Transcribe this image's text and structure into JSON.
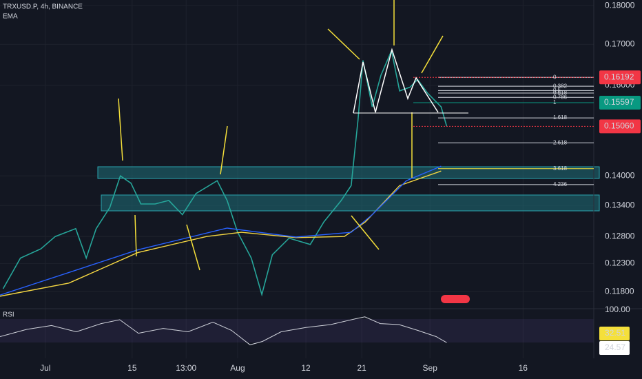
{
  "symbol": "TRXUSD.P, 4h, BINANCE",
  "indicator": "EMA",
  "rsi_label": "RSI",
  "chart_data": {
    "type": "line",
    "log": true,
    "grid": true,
    "xlim": [
      -7.3,
      88.4
    ],
    "ylim": [
      0.116,
      0.1815
    ],
    "xticks": [
      {
        "value": 0,
        "label": "Jul"
      },
      {
        "value": 14,
        "label": "15"
      },
      {
        "value": 22.7,
        "label": "13:00"
      },
      {
        "value": 31,
        "label": "Aug"
      },
      {
        "value": 42,
        "label": "12"
      },
      {
        "value": 51,
        "label": "21"
      },
      {
        "value": 62,
        "label": "Sep"
      },
      {
        "value": 77,
        "label": "16"
      }
    ],
    "yticks": [
      {
        "value": 0.18,
        "label": "0.18000"
      },
      {
        "value": 0.17,
        "label": "0.17000"
      },
      {
        "value": 0.16,
        "label": "0.16000"
      },
      {
        "value": 0.14,
        "label": "0.14000"
      },
      {
        "value": 0.134,
        "label": "0.13400"
      },
      {
        "value": 0.128,
        "label": "0.12800"
      },
      {
        "value": 0.123,
        "label": "0.12300"
      },
      {
        "value": 0.118,
        "label": "0.11800"
      }
    ],
    "series": [
      {
        "color": "#26a69a",
        "x": [
          -6.8,
          -4,
          -0.7,
          1.6,
          4.9,
          6.6,
          8.2,
          10.4,
          12.1,
          13.8,
          15.4,
          17.7,
          19.9,
          22.1,
          24.3,
          27.7,
          29.3,
          31,
          33.2,
          34.9,
          36.6,
          39.3,
          42.7,
          44.9,
          47.7,
          49.3,
          50.4,
          51.2,
          52.7,
          54.1,
          55.8,
          57.1,
          58.8,
          60,
          61.6,
          63.8,
          64.7
        ],
        "values": [
          0.1185,
          0.124,
          0.1257,
          0.128,
          0.1295,
          0.124,
          0.1295,
          0.1336,
          0.14,
          0.1385,
          0.1343,
          0.1343,
          0.135,
          0.1322,
          0.1364,
          0.139,
          0.135,
          0.1288,
          0.124,
          0.1175,
          0.1246,
          0.1277,
          0.1265,
          0.1308,
          0.135,
          0.138,
          0.152,
          0.166,
          0.155,
          0.1624,
          0.1684,
          0.1587,
          0.1596,
          0.1614,
          0.1582,
          0.155,
          0.1506
        ]
      },
      {
        "color": "#f5d742",
        "x": [
          -7.3,
          3.8,
          14.9,
          26,
          31.6,
          40.4,
          48.2,
          51.6,
          57.1,
          63.8
        ],
        "values": [
          0.1172,
          0.1195,
          0.125,
          0.128,
          0.1288,
          0.1278,
          0.128,
          0.1308,
          0.138,
          0.141
        ]
      },
      {
        "color": "#2962ff",
        "x": [
          -7.3,
          14.9,
          29.3,
          40.4,
          49.3,
          52.7,
          58.2,
          63.8
        ],
        "values": [
          0.1174,
          0.1255,
          0.1296,
          0.1279,
          0.1288,
          0.1322,
          0.139,
          0.142
        ]
      }
    ],
    "price_labels": [
      {
        "value": 0.16192,
        "label": "0.16192",
        "color": "#f23645"
      },
      {
        "value": 0.15597,
        "label": "0.15597",
        "color": "#089981"
      },
      {
        "value": 0.1506,
        "label": "0.15060",
        "color": "#f23645"
      }
    ],
    "fib_levels": [
      {
        "label": "0",
        "price": 0.16192
      },
      {
        "label": "0.382",
        "price": 0.1598
      },
      {
        "label": "0.5",
        "price": 0.1588
      },
      {
        "label": "0.618",
        "price": 0.1582
      },
      {
        "label": "0.786",
        "price": 0.1572
      },
      {
        "label": "1",
        "price": 0.15597
      },
      {
        "label": "1.618",
        "price": 0.1525
      },
      {
        "label": "2.618",
        "price": 0.147
      },
      {
        "label": "3.618",
        "price": 0.1415
      },
      {
        "label": "4.236",
        "price": 0.1382
      }
    ],
    "rsi": {
      "ylim": [
        0,
        100
      ],
      "yticks": [
        {
          "value": 100,
          "label": "100.00"
        }
      ],
      "x": [
        -7.3,
        -3,
        1,
        5,
        9,
        12,
        15,
        19,
        23,
        27,
        30,
        33,
        35,
        38,
        42,
        46,
        50,
        51.5,
        54,
        57,
        60,
        63,
        64.7
      ],
      "values": [
        45,
        60,
        68,
        55,
        72,
        80,
        52,
        62,
        55,
        75,
        58,
        28,
        35,
        55,
        64,
        70,
        82,
        86,
        72,
        70,
        58,
        45,
        32.51
      ],
      "last": 32.51,
      "ma_last": 24.57
    }
  }
}
